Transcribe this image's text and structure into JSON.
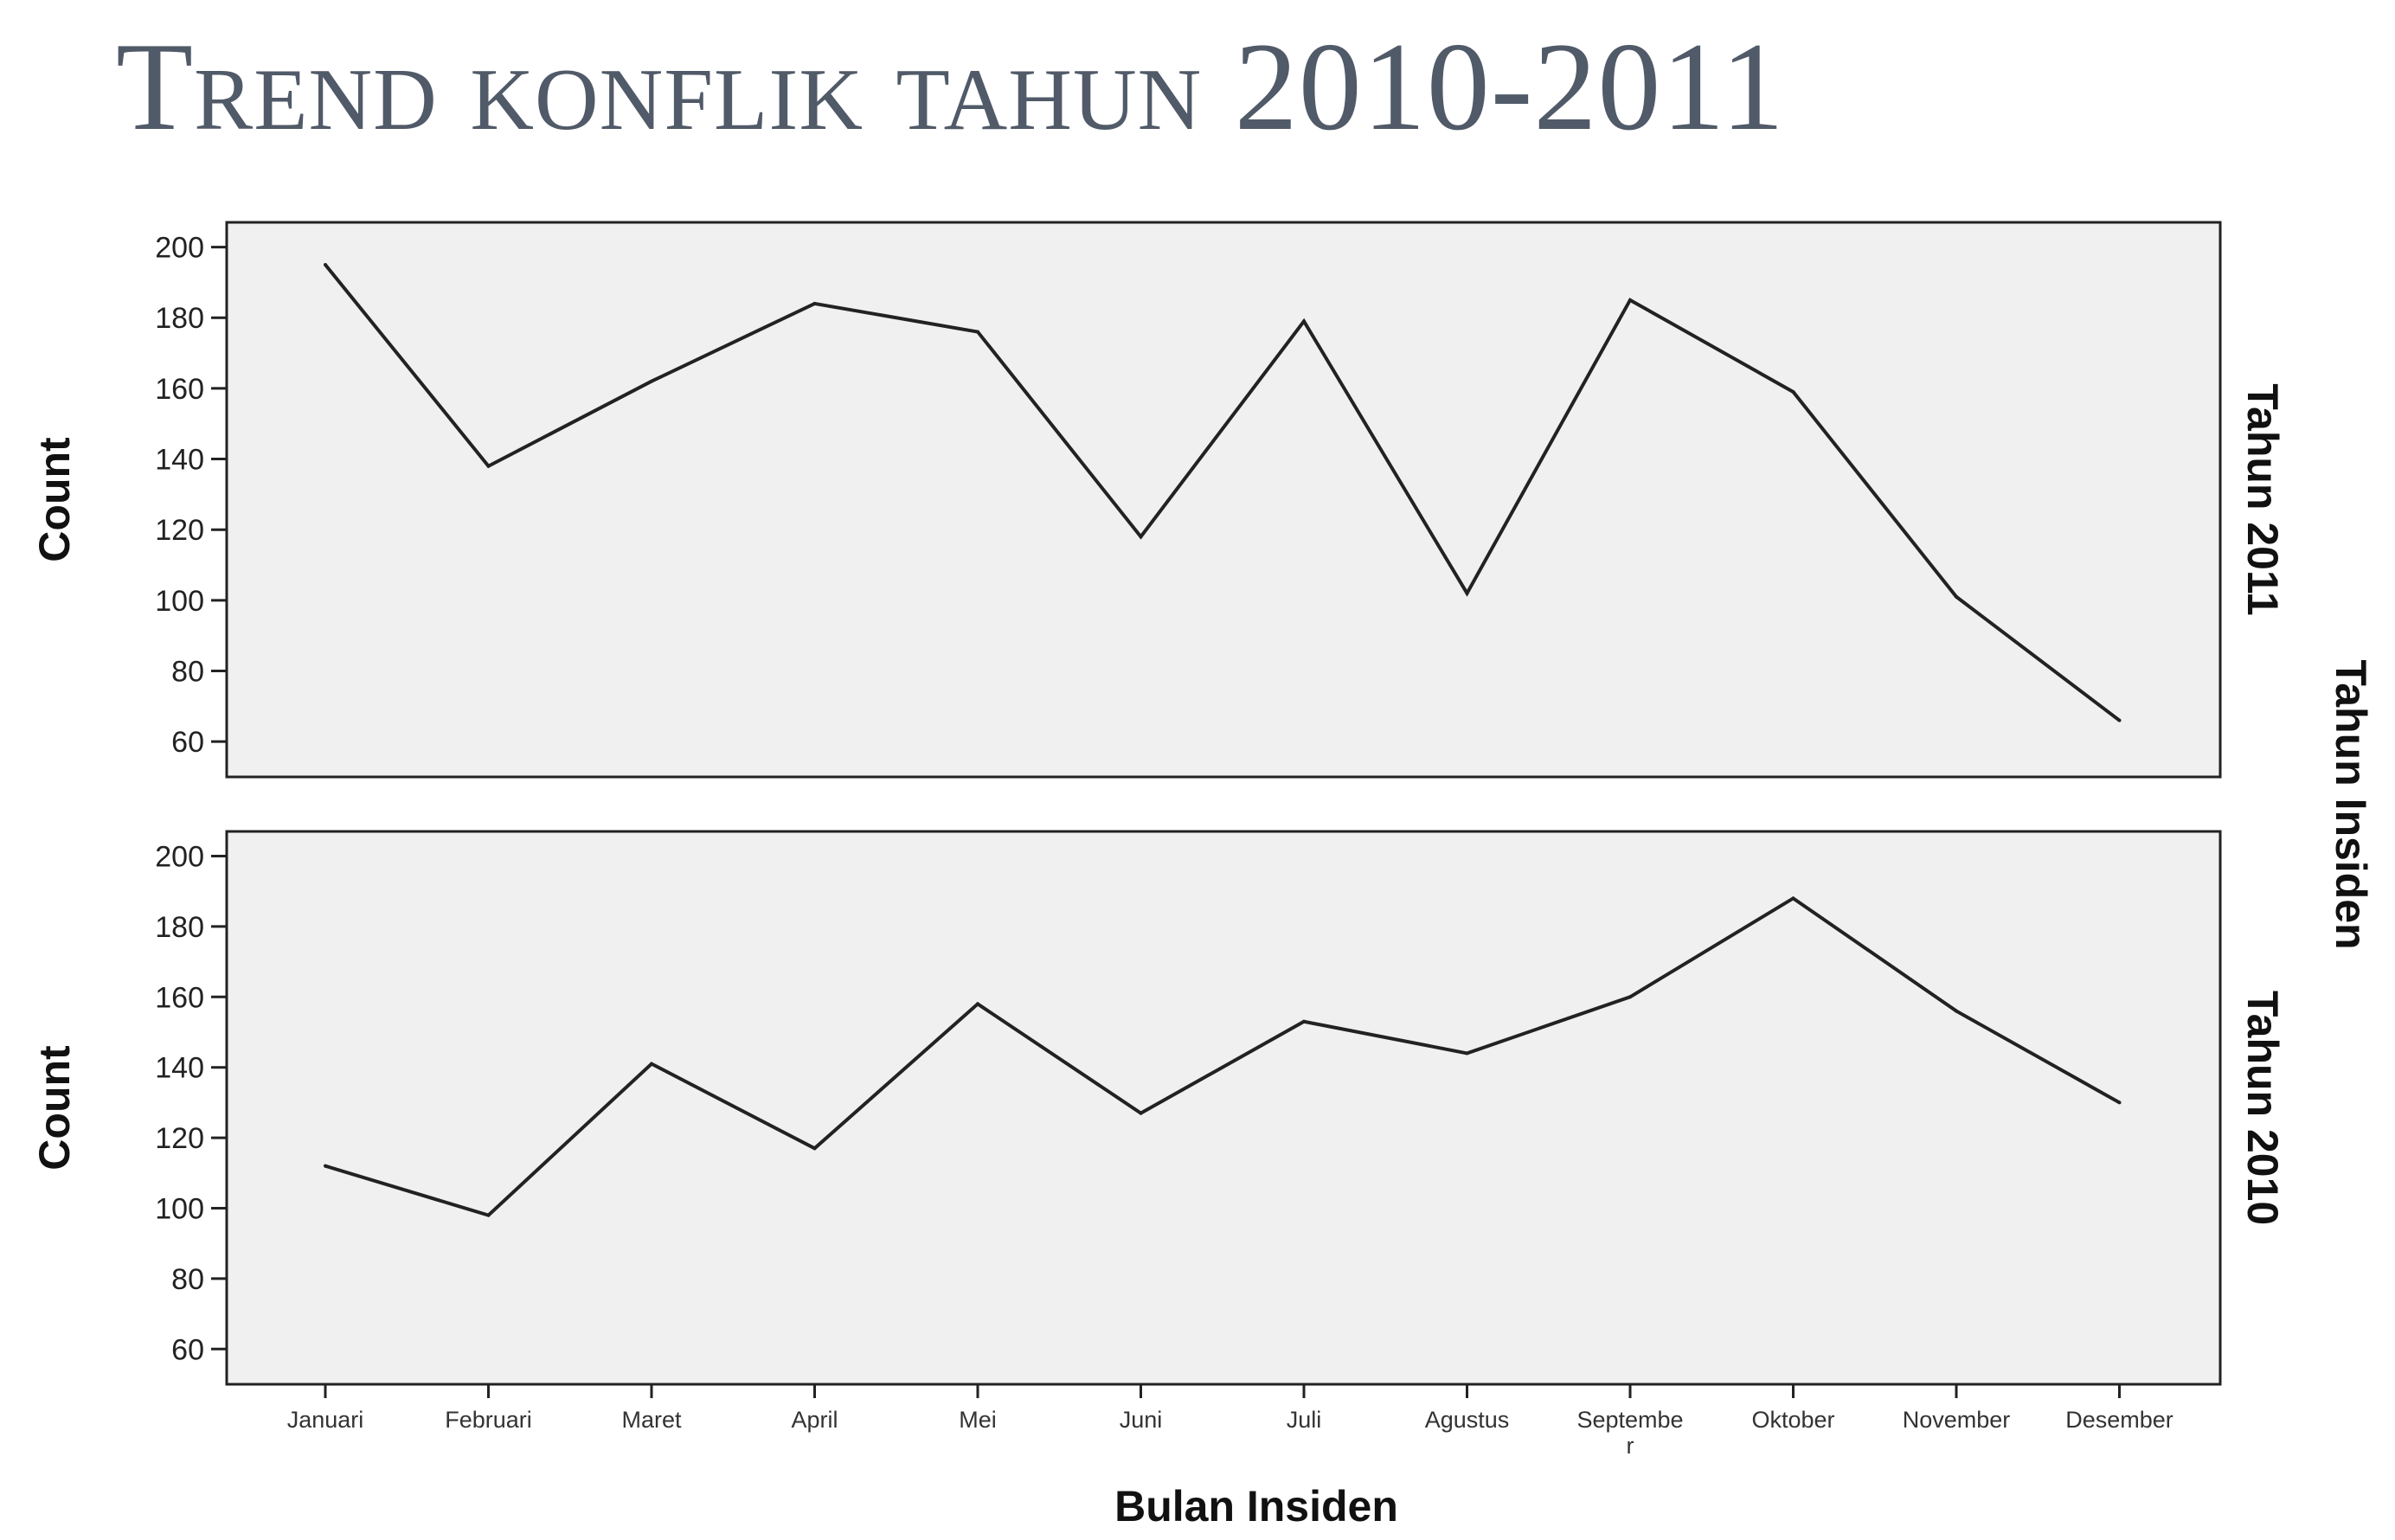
{
  "slide": {
    "title": "Trend konflik tahun 2010-2011"
  },
  "chart_data": {
    "type": "line",
    "xlabel": "Bulan Insiden",
    "ylabel": "Count",
    "facet_label": "Tahun Insiden",
    "ylim": [
      50,
      207
    ],
    "yticks": [
      60,
      80,
      100,
      120,
      140,
      160,
      180,
      200
    ],
    "grid": false,
    "categories": [
      "Januari",
      "Februari",
      "Maret",
      "April",
      "Mei",
      "Juni",
      "Juli",
      "Agustus",
      "Septembe\nr",
      "Oktober",
      "November",
      "Desember"
    ],
    "panels": [
      {
        "label": "Tahun 2011",
        "values": [
          195,
          138,
          162,
          184,
          176,
          118,
          179,
          102,
          185,
          159,
          101,
          66
        ]
      },
      {
        "label": "Tahun 2010",
        "values": [
          112,
          98,
          141,
          117,
          158,
          127,
          153,
          144,
          160,
          188,
          156,
          130
        ]
      }
    ],
    "colors": {
      "plot_background": "#f0f0f0",
      "line": "#222222",
      "axis": "#222222"
    }
  }
}
